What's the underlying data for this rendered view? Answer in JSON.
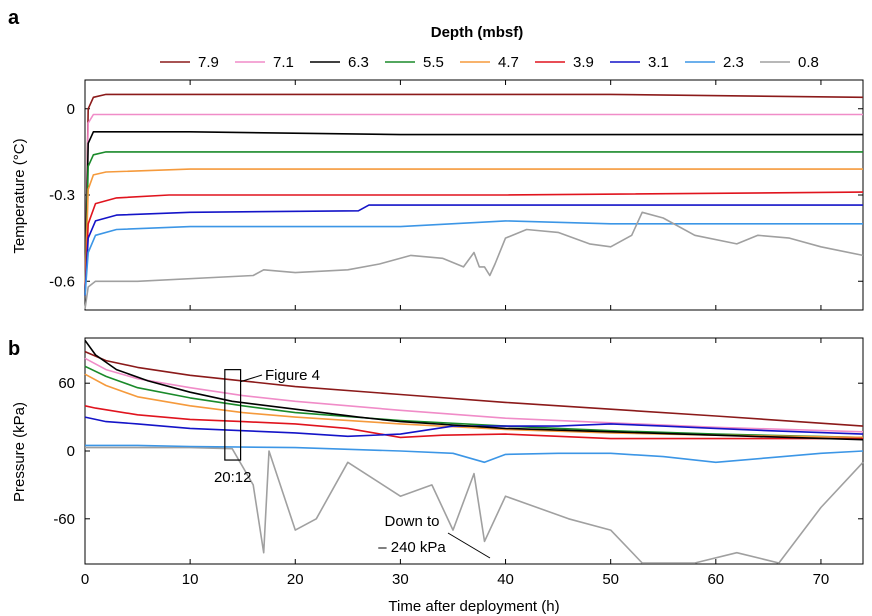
{
  "panel_a_letter": "a",
  "panel_b_letter": "b",
  "chart_data": [
    {
      "type": "line",
      "legend_title": "Depth (mbsf)",
      "legend_position": "top",
      "xlim": [
        0,
        74
      ],
      "ylim": [
        -0.7,
        0.1
      ],
      "yticks": [
        0,
        -0.3,
        -0.6
      ],
      "ytick_labels": [
        "0",
        "-0.3",
        "-0.6"
      ],
      "xticks": [
        0,
        10,
        20,
        30,
        40,
        50,
        60,
        70
      ],
      "ylabel": "Temperature (°C)",
      "series": [
        {
          "name": "7.9",
          "color": "#8b1a1a",
          "x": [
            0,
            0.3,
            0.8,
            2,
            10,
            30,
            50,
            74
          ],
          "values": [
            -0.65,
            0.0,
            0.04,
            0.05,
            0.05,
            0.05,
            0.05,
            0.04
          ]
        },
        {
          "name": "7.1",
          "color": "#f08cc8",
          "x": [
            0,
            0.3,
            0.8,
            2,
            10,
            30,
            50,
            74
          ],
          "values": [
            -0.65,
            -0.05,
            -0.02,
            -0.02,
            -0.02,
            -0.02,
            -0.02,
            -0.02
          ]
        },
        {
          "name": "6.3",
          "color": "#000000",
          "x": [
            0,
            0.3,
            0.8,
            2,
            10,
            30,
            50,
            74
          ],
          "values": [
            -0.65,
            -0.12,
            -0.08,
            -0.08,
            -0.08,
            -0.09,
            -0.09,
            -0.09
          ]
        },
        {
          "name": "5.5",
          "color": "#1a8a2a",
          "x": [
            0,
            0.3,
            0.8,
            2,
            10,
            30,
            50,
            74
          ],
          "values": [
            -0.65,
            -0.2,
            -0.16,
            -0.15,
            -0.15,
            -0.15,
            -0.15,
            -0.15
          ]
        },
        {
          "name": "4.7",
          "color": "#f59a3c",
          "x": [
            0,
            0.3,
            0.8,
            2,
            10,
            30,
            50,
            74
          ],
          "values": [
            -0.65,
            -0.28,
            -0.23,
            -0.22,
            -0.21,
            -0.21,
            -0.21,
            -0.21
          ]
        },
        {
          "name": "3.9",
          "color": "#e0141e",
          "x": [
            0,
            0.3,
            1,
            3,
            8,
            20,
            40,
            74
          ],
          "values": [
            -0.65,
            -0.4,
            -0.33,
            -0.31,
            -0.3,
            -0.3,
            -0.3,
            -0.29
          ]
        },
        {
          "name": "3.1",
          "color": "#1414c8",
          "x": [
            0,
            0.3,
            1,
            3,
            10,
            26,
            27,
            40,
            74
          ],
          "values": [
            -0.65,
            -0.45,
            -0.39,
            -0.37,
            -0.36,
            -0.355,
            -0.335,
            -0.335,
            -0.335
          ]
        },
        {
          "name": "2.3",
          "color": "#3c96e6",
          "x": [
            0,
            0.3,
            1,
            3,
            10,
            30,
            40,
            50,
            74
          ],
          "values": [
            -0.65,
            -0.5,
            -0.44,
            -0.42,
            -0.41,
            -0.41,
            -0.39,
            -0.4,
            -0.4
          ]
        },
        {
          "name": "0.8",
          "color": "#a0a0a0",
          "x": [
            0,
            0.3,
            1,
            5,
            16,
            17,
            20,
            25,
            28,
            31,
            34,
            36,
            37,
            37.5,
            38,
            38.5,
            39,
            40,
            42,
            45,
            48,
            50,
            52,
            53,
            55,
            58,
            62,
            64,
            67,
            70,
            74
          ],
          "values": [
            -0.7,
            -0.62,
            -0.6,
            -0.6,
            -0.58,
            -0.56,
            -0.57,
            -0.56,
            -0.54,
            -0.51,
            -0.52,
            -0.55,
            -0.5,
            -0.55,
            -0.55,
            -0.58,
            -0.54,
            -0.45,
            -0.42,
            -0.43,
            -0.47,
            -0.48,
            -0.44,
            -0.36,
            -0.38,
            -0.44,
            -0.47,
            -0.44,
            -0.45,
            -0.48,
            -0.51
          ]
        }
      ]
    },
    {
      "type": "line",
      "xlim": [
        0,
        74
      ],
      "ylim": [
        -100,
        100
      ],
      "yticks": [
        60,
        0,
        -60
      ],
      "ytick_labels": [
        "60",
        "0",
        "-60"
      ],
      "xticks": [
        0,
        10,
        20,
        30,
        40,
        50,
        60,
        70
      ],
      "xtick_labels": [
        "0",
        "10",
        "20",
        "30",
        "40",
        "50",
        "60",
        "70"
      ],
      "xlabel": "Time after deployment (h)",
      "ylabel": "Pressure (kPa)",
      "annotations": {
        "box_label": "Figure 4",
        "box_time": "20:12",
        "box_x_range": [
          13.3,
          14.8
        ],
        "box_y_range": [
          -8,
          72
        ],
        "down_label_line1": "Down to",
        "down_label_line2": "– 240 kPa"
      },
      "series": [
        {
          "name": "7.9",
          "color": "#8b1a1a",
          "x": [
            0,
            2,
            5,
            10,
            15,
            20,
            30,
            40,
            50,
            60,
            74
          ],
          "values": [
            88,
            80,
            74,
            67,
            62,
            57,
            50,
            43,
            37,
            31,
            22
          ]
        },
        {
          "name": "7.1",
          "color": "#f08cc8",
          "x": [
            0,
            2,
            5,
            10,
            15,
            20,
            30,
            40,
            50,
            60,
            74
          ],
          "values": [
            82,
            72,
            64,
            56,
            49,
            44,
            36,
            29,
            25,
            21,
            17
          ]
        },
        {
          "name": "6.3",
          "color": "#000000",
          "x": [
            0,
            1,
            3,
            6,
            10,
            14,
            20,
            26,
            30,
            35,
            40,
            50,
            60,
            74
          ],
          "values": [
            98,
            85,
            72,
            62,
            52,
            44,
            37,
            30,
            26,
            23,
            20,
            17,
            14,
            10
          ]
        },
        {
          "name": "5.5",
          "color": "#1a8a2a",
          "x": [
            0,
            2,
            5,
            10,
            15,
            20,
            30,
            40,
            50,
            60,
            74
          ],
          "values": [
            75,
            66,
            56,
            47,
            40,
            34,
            27,
            22,
            18,
            15,
            12
          ]
        },
        {
          "name": "4.7",
          "color": "#f59a3c",
          "x": [
            0,
            2,
            5,
            10,
            15,
            20,
            30,
            40,
            50,
            60,
            74
          ],
          "values": [
            68,
            58,
            48,
            40,
            34,
            30,
            24,
            19,
            16,
            14,
            12
          ]
        },
        {
          "name": "3.9",
          "color": "#e0141e",
          "x": [
            0,
            1,
            5,
            10,
            15,
            20,
            25,
            30,
            34,
            40,
            50,
            60,
            74
          ],
          "values": [
            40,
            38,
            32,
            28,
            26,
            24,
            20,
            12,
            14,
            15,
            11,
            11,
            11
          ]
        },
        {
          "name": "3.1",
          "color": "#1414c8",
          "x": [
            0,
            2,
            5,
            10,
            15,
            20,
            25,
            30,
            35,
            40,
            45,
            50,
            55,
            60,
            65,
            74
          ],
          "values": [
            30,
            26,
            24,
            20,
            18,
            16,
            13,
            15,
            22,
            22,
            22,
            24,
            22,
            20,
            18,
            15
          ]
        },
        {
          "name": "2.3",
          "color": "#3c96e6",
          "x": [
            0,
            5,
            10,
            20,
            30,
            35,
            38,
            40,
            45,
            50,
            55,
            60,
            65,
            70,
            74
          ],
          "values": [
            5,
            5,
            4,
            3,
            0,
            -2,
            -10,
            -3,
            -2,
            -2,
            -5,
            -10,
            -6,
            -2,
            0
          ]
        },
        {
          "name": "0.8",
          "color": "#a0a0a0",
          "x": [
            0,
            5,
            10,
            14,
            16,
            17,
            17.5,
            20,
            22,
            25,
            30,
            33,
            35,
            37,
            38,
            40,
            43,
            46,
            50,
            53,
            55,
            58,
            62,
            66,
            70,
            74
          ],
          "values": [
            3,
            3,
            3,
            2,
            -30,
            -90,
            0,
            -70,
            -60,
            -10,
            -40,
            -30,
            -70,
            -20,
            -80,
            -40,
            -50,
            -60,
            -70,
            -100,
            -100,
            -100,
            -90,
            -100,
            -50,
            -10
          ]
        }
      ]
    }
  ]
}
